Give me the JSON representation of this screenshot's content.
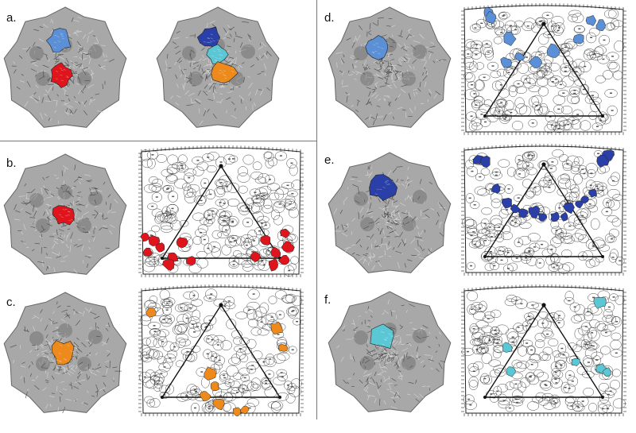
{
  "panels": [
    {
      "label": "a."
    },
    {
      "label": "b."
    },
    {
      "label": "c."
    },
    {
      "label": "d."
    },
    {
      "label": "e."
    },
    {
      "label": "f."
    }
  ],
  "colors": {
    "red": "#e0141c",
    "orange": "#ee8a1c",
    "light_blue": "#5b8fd6",
    "dark_blue": "#2a3fa8",
    "cyan": "#5cc7d4",
    "capsid_gray": "#8a8a8a"
  },
  "icons": {
    "capsid": "capsid-surface-icon",
    "roadmap": "roadmap-projection-icon"
  }
}
